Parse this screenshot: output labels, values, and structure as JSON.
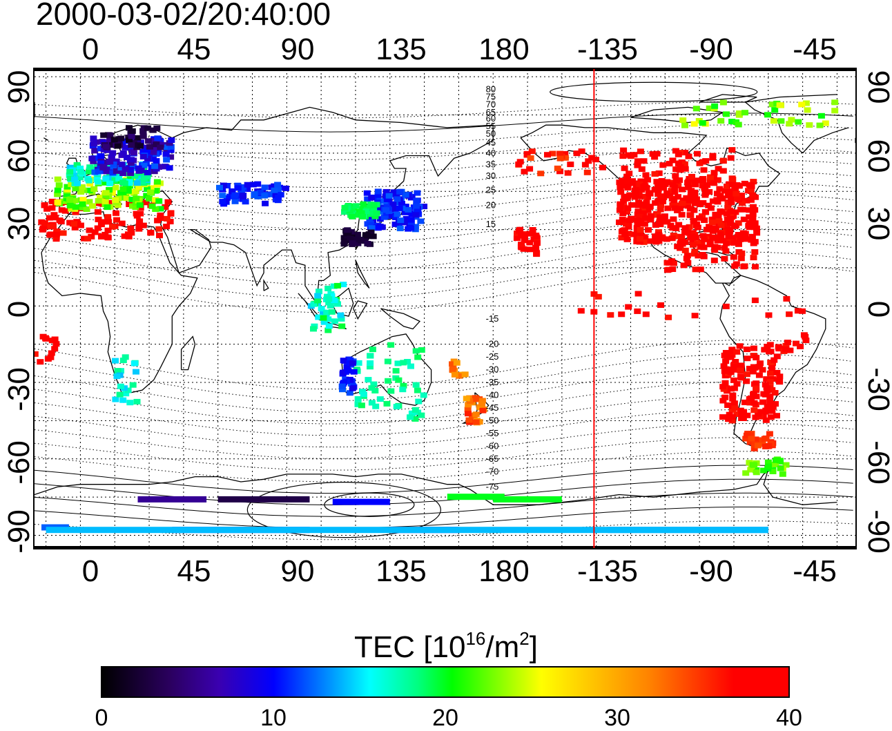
{
  "title": "2000-03-02/20:40:00",
  "x_ticks": [
    "0",
    "45",
    "90",
    "135",
    "180",
    "-135",
    "-90",
    "-45"
  ],
  "y_ticks": [
    "90",
    "60",
    "30",
    "0",
    "-30",
    "-60",
    "-90"
  ],
  "colorbar": {
    "label": "TEC  [10",
    "label_exp": "16",
    "label_mid": "/m",
    "label_exp2": "2",
    "label_end": "]",
    "ticks": [
      "0",
      "10",
      "20",
      "30",
      "40"
    ],
    "range": [
      0,
      40
    ]
  },
  "contour_labels": [
    "80",
    "75",
    "70",
    "65",
    "60",
    "55",
    "50",
    "45",
    "40",
    "35",
    "30",
    "25",
    "20",
    "15",
    "-15",
    "-20",
    "-25",
    "-30",
    "-35",
    "-40",
    "-45",
    "-50",
    "-55",
    "-60",
    "-65",
    "-70",
    "-75"
  ],
  "colors": {
    "frame": "#000000",
    "coast": "#000000",
    "grid": "#000000",
    "marker_line": "#ff0000",
    "tec_low": "#000000",
    "tec_mid": "#00ff00",
    "tec_high": "#ff0000"
  },
  "map": {
    "longitude_range": [
      -20,
      338
    ],
    "latitude_range": [
      -95,
      93
    ],
    "marker_longitude": -136,
    "grid_spacing_lon": 15,
    "grid_spacing_lat": 15
  }
}
